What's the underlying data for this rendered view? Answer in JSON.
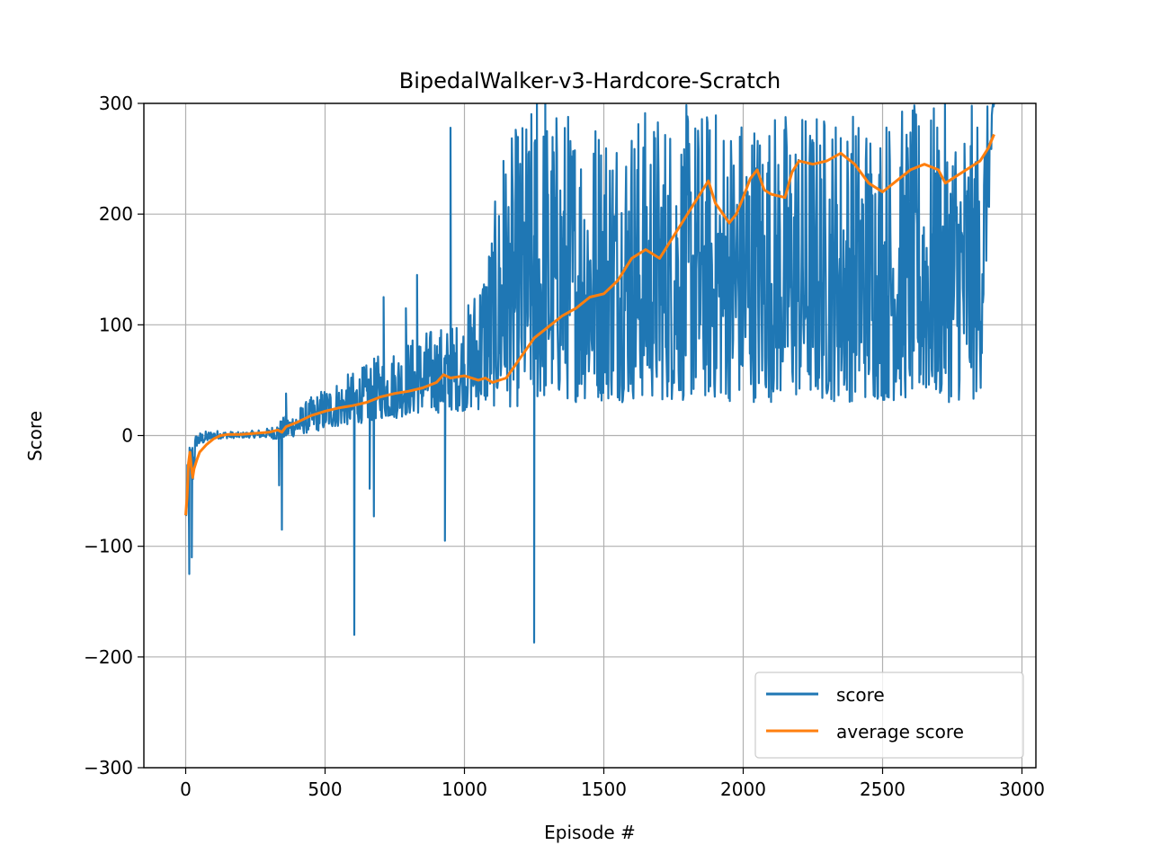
{
  "chart_data": {
    "type": "line",
    "title": "BipedalWalker-v3-Hardcore-Scratch",
    "xlabel": "Episode #",
    "ylabel": "Score",
    "xlim": [
      -150,
      3050
    ],
    "ylim": [
      -300,
      300
    ],
    "xticks": [
      0,
      500,
      1000,
      1500,
      2000,
      2500,
      3000
    ],
    "yticks": [
      -300,
      -200,
      -100,
      0,
      100,
      200,
      300
    ],
    "xtick_labels": [
      "0",
      "500",
      "1000",
      "1500",
      "2000",
      "2500",
      "3000"
    ],
    "ytick_labels": [
      "−300",
      "−200",
      "−100",
      "0",
      "100",
      "200",
      "300"
    ],
    "grid": true,
    "legend_position": "lower-right",
    "series": [
      {
        "name": "score",
        "color": "#1f77b4",
        "envelope": {
          "x": [
            0,
            10,
            20,
            40,
            100,
            200,
            300,
            340,
            400,
            450,
            500,
            550,
            600,
            650,
            700,
            750,
            800,
            850,
            900,
            950,
            1000,
            1050,
            1100,
            1150,
            1200,
            1250,
            1300,
            1400,
            1500,
            1600,
            1700,
            1800,
            1900,
            2000,
            2100,
            2200,
            2300,
            2400,
            2500,
            2600,
            2700,
            2800,
            2850,
            2900
          ],
          "upper": [
            -70,
            3,
            5,
            3,
            5,
            3,
            7,
            15,
            25,
            35,
            45,
            52,
            58,
            65,
            75,
            80,
            88,
            95,
            100,
            100,
            110,
            150,
            200,
            260,
            290,
            300,
            300,
            300,
            300,
            300,
            300,
            300,
            300,
            300,
            300,
            300,
            300,
            300,
            300,
            300,
            300,
            300,
            300,
            300
          ],
          "lower": [
            -70,
            -100,
            -60,
            -10,
            -3,
            -2,
            -2,
            -5,
            0,
            3,
            5,
            8,
            10,
            12,
            15,
            15,
            18,
            20,
            20,
            22,
            22,
            22,
            25,
            25,
            25,
            25,
            30,
            30,
            30,
            30,
            30,
            30,
            30,
            30,
            30,
            30,
            30,
            30,
            30,
            30,
            30,
            30,
            30,
            300
          ]
        },
        "peaks": [
          {
            "x": 13,
            "y": -125
          },
          {
            "x": 22,
            "y": -110
          },
          {
            "x": 335,
            "y": -45
          },
          {
            "x": 345,
            "y": -85
          },
          {
            "x": 360,
            "y": 38
          },
          {
            "x": 605,
            "y": -180
          },
          {
            "x": 660,
            "y": -48
          },
          {
            "x": 675,
            "y": -73
          },
          {
            "x": 710,
            "y": 125
          },
          {
            "x": 790,
            "y": 115
          },
          {
            "x": 830,
            "y": 145
          },
          {
            "x": 930,
            "y": -95
          },
          {
            "x": 950,
            "y": 278
          },
          {
            "x": 1140,
            "y": 248
          },
          {
            "x": 1250,
            "y": -187
          },
          {
            "x": 1260,
            "y": 300
          },
          {
            "x": 1290,
            "y": 300
          }
        ]
      },
      {
        "name": "average score",
        "color": "#ff7f0e",
        "x": [
          0,
          5,
          10,
          15,
          20,
          25,
          30,
          40,
          50,
          75,
          100,
          125,
          150,
          200,
          250,
          300,
          330,
          345,
          360,
          400,
          450,
          500,
          550,
          600,
          650,
          700,
          750,
          800,
          850,
          900,
          925,
          950,
          1000,
          1050,
          1075,
          1100,
          1150,
          1200,
          1250,
          1300,
          1350,
          1400,
          1450,
          1500,
          1550,
          1600,
          1650,
          1700,
          1750,
          1800,
          1850,
          1875,
          1900,
          1950,
          1975,
          2000,
          2025,
          2050,
          2075,
          2100,
          2150,
          2175,
          2200,
          2250,
          2300,
          2350,
          2400,
          2450,
          2500,
          2550,
          2600,
          2650,
          2700,
          2725,
          2750,
          2800,
          2850,
          2880,
          2900
        ],
        "y": [
          -72,
          -55,
          -25,
          -15,
          -28,
          -38,
          -30,
          -22,
          -15,
          -8,
          -3,
          0,
          1,
          1,
          2,
          3,
          5,
          3,
          8,
          12,
          18,
          22,
          25,
          27,
          30,
          35,
          38,
          40,
          43,
          48,
          55,
          52,
          54,
          50,
          52,
          48,
          52,
          70,
          88,
          98,
          108,
          115,
          125,
          128,
          140,
          160,
          168,
          160,
          180,
          200,
          220,
          230,
          210,
          192,
          200,
          215,
          232,
          240,
          222,
          218,
          215,
          238,
          248,
          245,
          248,
          255,
          245,
          228,
          220,
          230,
          240,
          245,
          240,
          228,
          232,
          240,
          248,
          260,
          272
        ]
      }
    ]
  }
}
